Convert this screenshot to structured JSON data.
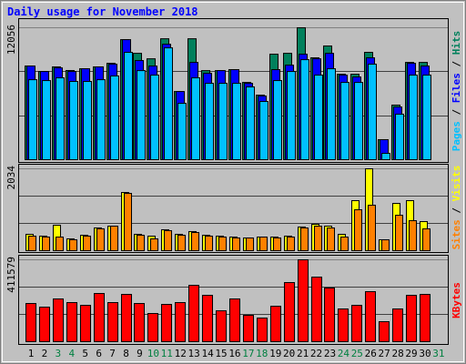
{
  "chart_data": [
    {
      "type": "bar",
      "title": "Daily usage for November 2018",
      "ylim": [
        0,
        12056
      ],
      "yticks": [
        12056
      ],
      "legend_separator": " / ",
      "series": [
        {
          "name": "Hits",
          "color": "#00805c",
          "values": [
            8560,
            8060,
            8480,
            8150,
            8310,
            8480,
            8810,
            10970,
            9720,
            9220,
            11050,
            6230,
            11050,
            8140,
            8140,
            8230,
            7060,
            5900,
            9640,
            9720,
            12056,
            9310,
            10390,
            7810,
            7810,
            9810,
            1830,
            4990,
            8890,
            8890,
            null
          ]
        },
        {
          "name": "Files",
          "color": "#0000ff",
          "values": [
            8560,
            8060,
            8390,
            8060,
            8310,
            8480,
            8730,
            10970,
            9060,
            8560,
            10550,
            6230,
            8890,
            7900,
            8140,
            8230,
            6980,
            5820,
            8230,
            8640,
            9640,
            9220,
            9720,
            7730,
            7560,
            9310,
            1830,
            4820,
            8810,
            8560,
            null
          ]
        },
        {
          "name": "Pages",
          "color": "#00c0ff",
          "values": [
            7310,
            7230,
            7480,
            7150,
            7150,
            7310,
            7650,
            9810,
            8140,
            7730,
            10220,
            5150,
            7480,
            6980,
            6980,
            6980,
            6650,
            5320,
            7230,
            8060,
            9140,
            7730,
            8310,
            7060,
            7060,
            8730,
            580,
            4160,
            7730,
            7730,
            null
          ]
        }
      ]
    },
    {
      "type": "bar",
      "ylim": [
        0,
        2034
      ],
      "yticks": [
        2034
      ],
      "legend_separator": " / ",
      "series": [
        {
          "name": "Visits",
          "color": "#ffff00",
          "values": [
            407,
            362,
            633,
            294,
            384,
            565,
            610,
            1446,
            407,
            362,
            520,
            407,
            475,
            384,
            362,
            339,
            316,
            339,
            339,
            362,
            588,
            655,
            610,
            407,
            1243,
            2034,
            271,
            1175,
            1243,
            723,
            null
          ]
        },
        {
          "name": "Sites",
          "color": "#ff8000",
          "values": [
            362,
            339,
            339,
            271,
            362,
            543,
            610,
            1424,
            384,
            294,
            497,
            384,
            452,
            362,
            339,
            316,
            316,
            339,
            316,
            339,
            565,
            610,
            565,
            339,
            1017,
            1130,
            271,
            881,
            746,
            543,
            null
          ]
        }
      ]
    },
    {
      "type": "bar",
      "ylim": [
        0,
        411579
      ],
      "yticks": [
        411579
      ],
      "categories": [
        "1",
        "2",
        "3",
        "4",
        "5",
        "6",
        "7",
        "8",
        "9",
        "10",
        "11",
        "12",
        "13",
        "14",
        "15",
        "16",
        "17",
        "18",
        "19",
        "20",
        "21",
        "22",
        "23",
        "24",
        "25",
        "26",
        "27",
        "28",
        "29",
        "30",
        "31"
      ],
      "label_colors": [
        "#000000",
        "#000000",
        "#008040",
        "#008040",
        "#000000",
        "#000000",
        "#000000",
        "#000000",
        "#000000",
        "#008040",
        "#008040",
        "#000000",
        "#000000",
        "#000000",
        "#000000",
        "#000000",
        "#008040",
        "#008040",
        "#000000",
        "#000000",
        "#000000",
        "#000000",
        "#000000",
        "#008040",
        "#008040",
        "#000000",
        "#000000",
        "#000000",
        "#000000",
        "#000000",
        "#008040"
      ],
      "series": [
        {
          "name": "KBytes",
          "color": "#ff0000",
          "values": [
            192060,
            173770,
            214930,
            196640,
            182920,
            242370,
            196640,
            237800,
            192060,
            141760,
            187490,
            196640,
            283530,
            233220,
            155330,
            214930,
            132610,
            118890,
            178350,
            297250,
            411579,
            324690,
            269810,
            164620,
            182920,
            251520,
            100610,
            164620,
            233220,
            237800,
            null
          ]
        }
      ]
    }
  ]
}
